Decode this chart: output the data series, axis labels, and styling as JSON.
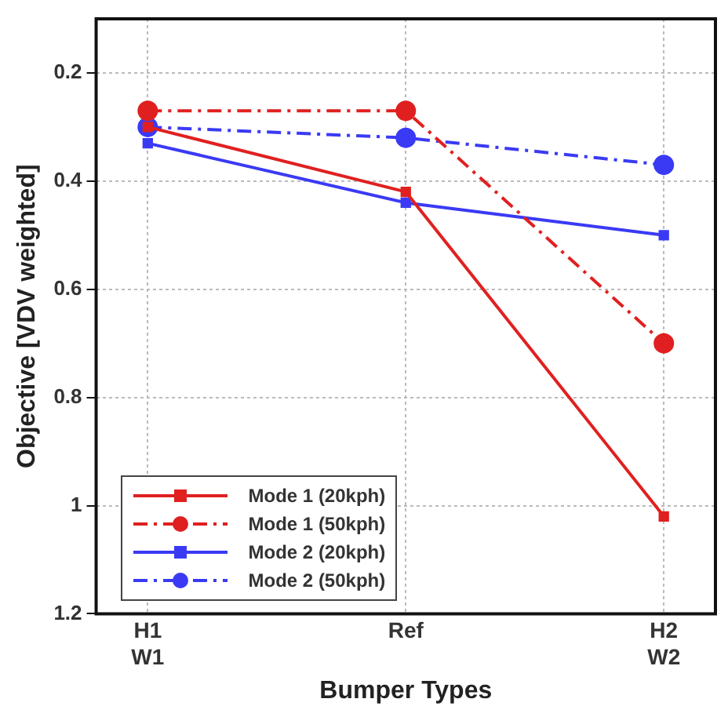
{
  "chart_data": {
    "type": "line",
    "xlabel": "Bumper Types",
    "ylabel": "Objective [VDV weighted]",
    "categories": [
      "H1\nW1",
      "Ref",
      "H2\nW2"
    ],
    "ylim": [
      1.2,
      0.1
    ],
    "yticks": [
      0.2,
      0.4,
      0.6,
      0.8,
      1,
      1.2
    ],
    "grid": true,
    "legend": "bottom left",
    "series": [
      {
        "name": "Mode 1 (20kph)",
        "color": "#e02020",
        "marker": "square",
        "line_style": "solid",
        "values": [
          0.3,
          0.42,
          1.02
        ]
      },
      {
        "name": "Mode 1 (50kph)",
        "color": "#e02020",
        "marker": "circle",
        "line_style": "dashed",
        "values": [
          0.27,
          0.27,
          0.7
        ]
      },
      {
        "name": "Mode 2 (20kph)",
        "color": "#3a3af5",
        "marker": "square",
        "line_style": "solid",
        "values": [
          0.33,
          0.44,
          0.5
        ]
      },
      {
        "name": "Mode 2 (50kph)",
        "color": "#3a3af5",
        "marker": "circle",
        "line_style": "dashed",
        "values": [
          0.3,
          0.32,
          0.37
        ]
      }
    ]
  }
}
